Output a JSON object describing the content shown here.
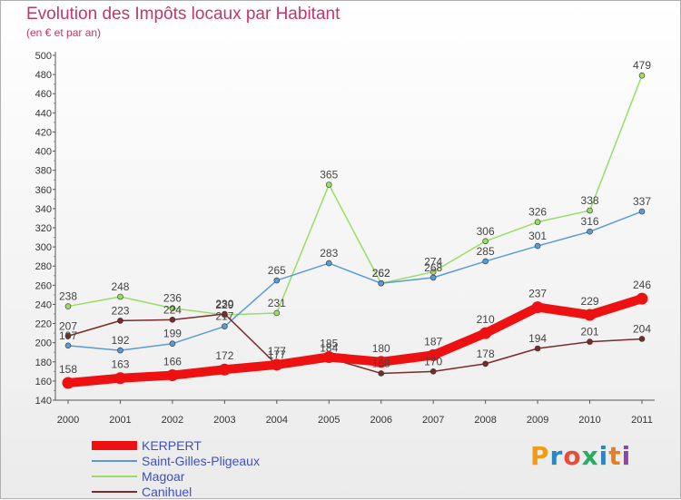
{
  "header": {
    "title": "Evolution des Impôts locaux par Habitant",
    "subtitle": "(en € et par an)"
  },
  "brand": {
    "name": "Proxiti",
    "colors": [
      "#f39c12",
      "#2e86c1",
      "#e74c3c",
      "#27ae60",
      "#2e86c1",
      "#e67e22",
      "#8e44ad"
    ]
  },
  "chart_data": {
    "type": "line",
    "x": [
      "2000",
      "2001",
      "2002",
      "2003",
      "2004",
      "2005",
      "2006",
      "2007",
      "2008",
      "2009",
      "2010",
      "2011"
    ],
    "ylim": [
      140,
      500
    ],
    "ytick_step": 20,
    "grid": false,
    "legend_position": "bottom-left",
    "series": [
      {
        "name": "KERPERT",
        "color": "#ee1111",
        "values": [
          158,
          163,
          166,
          172,
          177,
          185,
          180,
          187,
          210,
          237,
          229,
          246
        ]
      },
      {
        "name": "Saint-Gilles-Pligeaux",
        "color": "#5b9bd5",
        "values": [
          197,
          192,
          199,
          217,
          265,
          283,
          262,
          268,
          285,
          301,
          316,
          337
        ]
      },
      {
        "name": "Magoar",
        "color": "#99dd66",
        "values": [
          238,
          248,
          236,
          229,
          231,
          365,
          262,
          274,
          306,
          326,
          338,
          479
        ]
      },
      {
        "name": "Canihuel",
        "color": "#7a2a2a",
        "values": [
          207,
          223,
          224,
          230,
          177,
          184,
          168,
          170,
          178,
          194,
          201,
          204
        ]
      }
    ]
  }
}
